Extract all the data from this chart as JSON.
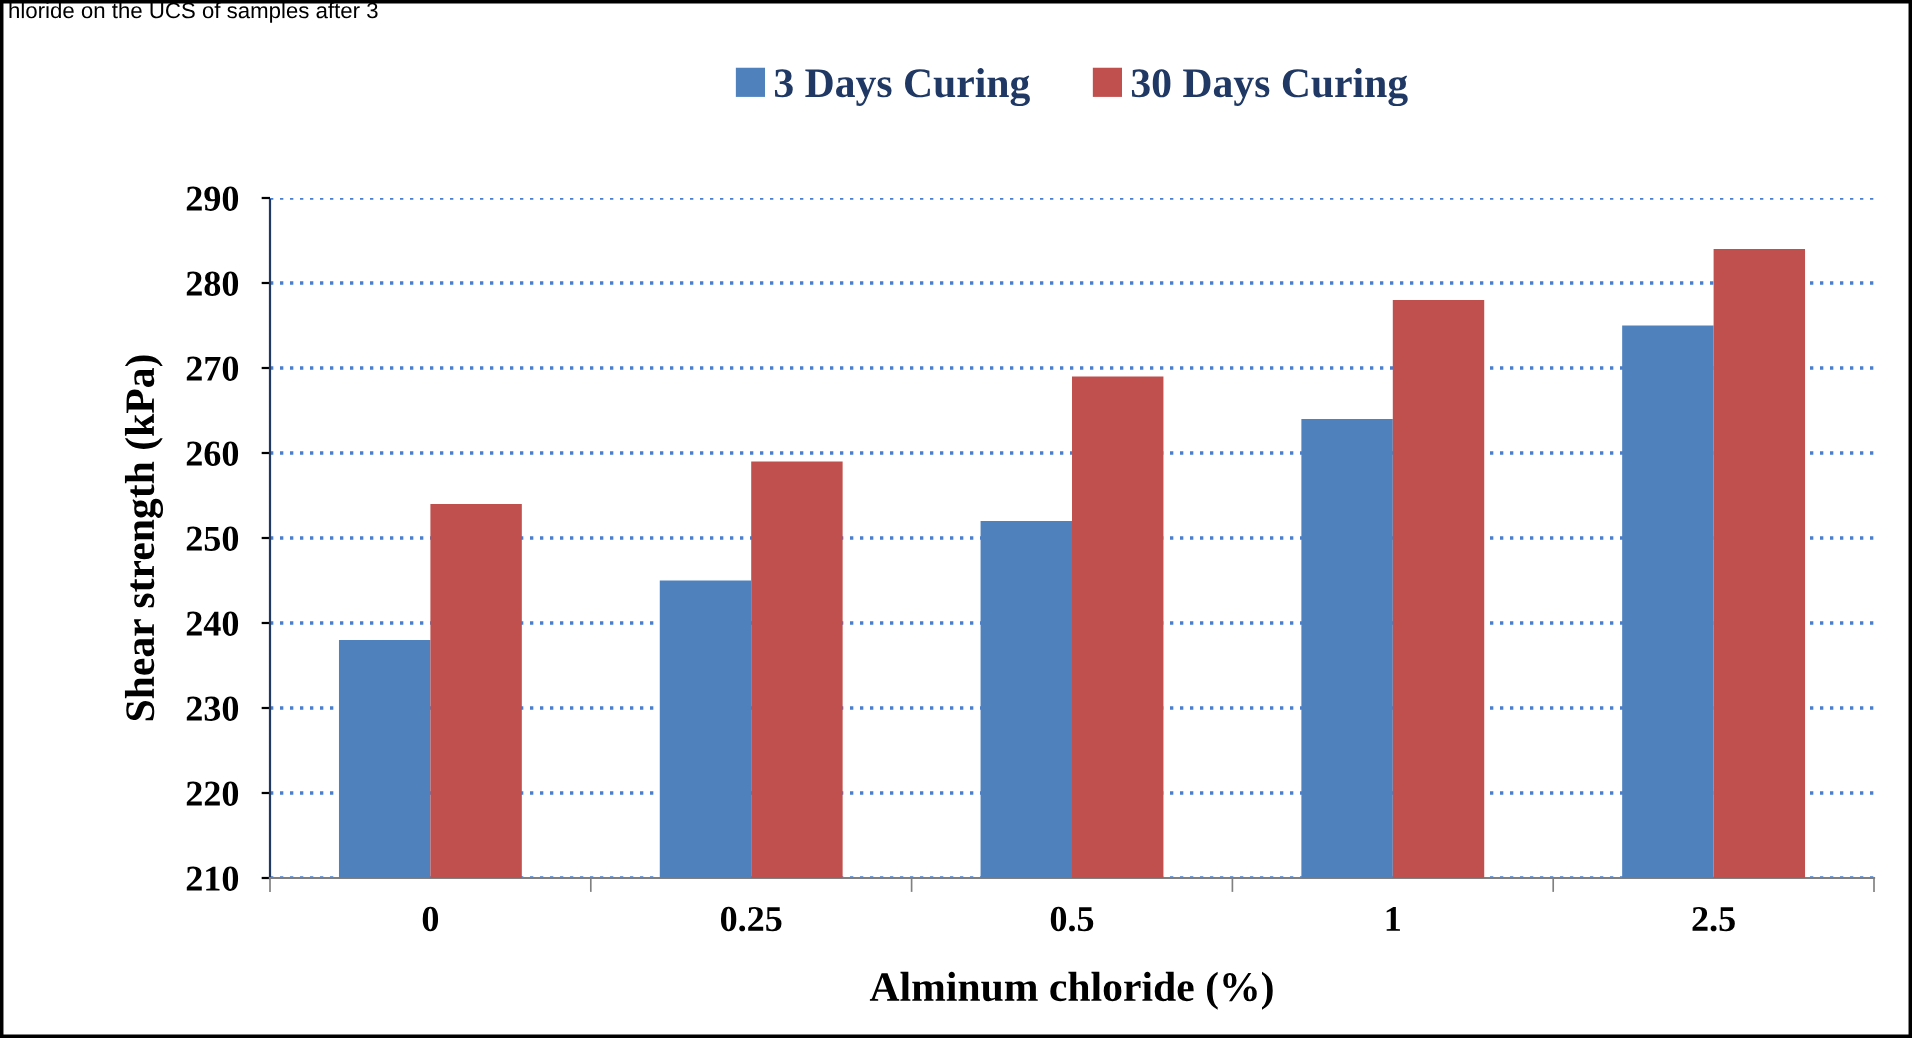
{
  "chart_data": {
    "type": "bar",
    "categories": [
      "0",
      "0.25",
      "0.5",
      "1",
      "2.5"
    ],
    "series": [
      {
        "name": "3 Days Curing",
        "color": "#4f81bd",
        "values": [
          238,
          245,
          252,
          264,
          275
        ]
      },
      {
        "name": "30 Days Curing",
        "color": "#c0504d",
        "values": [
          254,
          259,
          269,
          278,
          284
        ]
      }
    ],
    "xlabel": "Alminum chloride (%)",
    "ylabel": "Shear strength (kPa)",
    "ylim": [
      210,
      290
    ],
    "yticks": [
      210,
      220,
      230,
      240,
      250,
      260,
      270,
      280,
      290
    ],
    "grid": "y",
    "legend": "top",
    "annotations": [
      "hloride on the UCS of samples after 3"
    ]
  }
}
